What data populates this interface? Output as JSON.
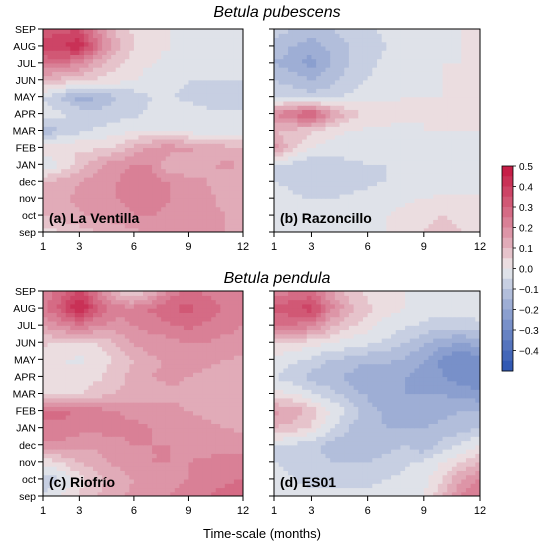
{
  "chart_data": {
    "type": "heatmap",
    "x_title": "Time-scale (months)",
    "x_ticks": [
      1,
      3,
      6,
      9,
      12
    ],
    "y_months": [
      "sep",
      "oct",
      "nov",
      "dec",
      "JAN",
      "FEB",
      "MAR",
      "APR",
      "MAY",
      "JUN",
      "JUL",
      "AUG",
      "SEP"
    ],
    "x_scales": [
      1,
      2,
      3,
      4,
      5,
      6,
      7,
      8,
      9,
      10,
      11,
      12
    ],
    "colorbar": {
      "ticks": [
        "0.5",
        "0.4",
        "0.3",
        "0.2",
        "0.1",
        "0.0",
        "−0.1",
        "−0.2",
        "−0.3",
        "−0.4"
      ],
      "levels": [
        0.5,
        0.4,
        0.3,
        0.2,
        0.1,
        0.0,
        -0.1,
        -0.2,
        -0.3,
        -0.4
      ],
      "range": [
        -0.5,
        0.5
      ],
      "positive_color": "#c41540",
      "negative_color": "#2a52b0",
      "neutral_color": "#eeeeee"
    },
    "species_titles": [
      "Betula pubescens",
      "Betula pendula"
    ],
    "panels": [
      {
        "label": "(a) La Ventilla",
        "values": [
          [
            0.02,
            0.05,
            0.08,
            0.1,
            0.12,
            0.14,
            0.15,
            0.16,
            0.17,
            0.16,
            0.15,
            0.14
          ],
          [
            0.1,
            0.12,
            0.14,
            0.16,
            0.18,
            0.2,
            0.2,
            0.19,
            0.18,
            0.16,
            0.15,
            0.14
          ],
          [
            0.12,
            0.14,
            0.16,
            0.18,
            0.2,
            0.21,
            0.21,
            0.2,
            0.18,
            0.16,
            0.14,
            0.12
          ],
          [
            0.1,
            0.12,
            0.15,
            0.18,
            0.2,
            0.22,
            0.22,
            0.2,
            0.17,
            0.15,
            0.13,
            0.12
          ],
          [
            -0.05,
            0.0,
            0.08,
            0.14,
            0.18,
            0.2,
            0.2,
            0.1,
            0.1,
            0.14,
            0.16,
            0.15
          ],
          [
            0.05,
            0.05,
            0.04,
            0.04,
            0.06,
            0.12,
            0.16,
            0.18,
            0.16,
            0.14,
            0.12,
            0.1
          ],
          [
            -0.15,
            -0.1,
            -0.06,
            -0.04,
            -0.02,
            0.0,
            0.0,
            0.0,
            -0.02,
            -0.03,
            -0.03,
            -0.02
          ],
          [
            -0.02,
            -0.04,
            -0.06,
            -0.08,
            -0.08,
            -0.06,
            -0.04,
            -0.02,
            -0.03,
            -0.04,
            -0.04,
            -0.04
          ],
          [
            -0.05,
            -0.1,
            -0.18,
            -0.15,
            -0.1,
            -0.08,
            -0.05,
            -0.05,
            -0.06,
            -0.07,
            -0.08,
            -0.08
          ],
          [
            0.1,
            0.08,
            0.06,
            0.04,
            0.02,
            0.0,
            -0.02,
            -0.04,
            -0.05,
            -0.05,
            -0.05,
            -0.05
          ],
          [
            0.25,
            0.25,
            0.2,
            0.12,
            0.06,
            0.02,
            0.0,
            -0.02,
            -0.03,
            -0.03,
            -0.03,
            -0.03
          ],
          [
            0.38,
            0.4,
            0.45,
            0.25,
            0.12,
            0.05,
            0.02,
            0.0,
            -0.01,
            -0.01,
            -0.02,
            -0.02
          ],
          [
            0.32,
            0.34,
            0.34,
            0.2,
            0.1,
            0.04,
            0.02,
            0.0,
            -0.01,
            -0.01,
            -0.02,
            -0.02
          ]
        ]
      },
      {
        "label": "(b) Razoncillo",
        "values": [
          [
            -0.05,
            -0.05,
            -0.04,
            -0.03,
            -0.02,
            -0.01,
            0.0,
            0.02,
            0.05,
            0.06,
            0.05,
            0.03
          ],
          [
            -0.05,
            -0.05,
            -0.04,
            -0.03,
            -0.02,
            -0.01,
            0.0,
            0.02,
            0.04,
            0.05,
            0.04,
            0.02
          ],
          [
            -0.03,
            -0.04,
            -0.05,
            -0.05,
            -0.04,
            -0.03,
            -0.02,
            -0.01,
            0.0,
            0.01,
            0.01,
            0.01
          ],
          [
            -0.05,
            -0.06,
            -0.1,
            -0.1,
            -0.08,
            -0.06,
            -0.05,
            -0.05,
            -0.05,
            -0.04,
            -0.03,
            -0.02
          ],
          [
            -0.05,
            -0.06,
            -0.1,
            -0.08,
            -0.06,
            -0.05,
            -0.05,
            -0.04,
            -0.03,
            -0.03,
            -0.02,
            -0.02
          ],
          [
            0.18,
            0.06,
            0.0,
            -0.02,
            -0.03,
            -0.03,
            -0.02,
            -0.02,
            -0.02,
            -0.01,
            -0.01,
            0.0
          ],
          [
            0.1,
            0.08,
            0.06,
            0.02,
            0.0,
            -0.01,
            -0.01,
            -0.01,
            0.0,
            0.0,
            0.0,
            0.0
          ],
          [
            0.2,
            0.26,
            0.32,
            0.18,
            0.08,
            0.04,
            0.02,
            0.01,
            0.0,
            0.0,
            0.0,
            0.0
          ],
          [
            -0.05,
            -0.06,
            -0.08,
            -0.06,
            -0.04,
            -0.02,
            -0.01,
            0.0,
            0.0,
            0.0,
            0.0,
            0.0
          ],
          [
            -0.1,
            -0.12,
            -0.15,
            -0.12,
            -0.08,
            -0.05,
            -0.03,
            -0.02,
            -0.01,
            0.0,
            0.0,
            0.0
          ],
          [
            -0.15,
            -0.18,
            -0.22,
            -0.15,
            -0.1,
            -0.06,
            -0.04,
            -0.02,
            -0.01,
            0.0,
            0.0,
            0.0
          ],
          [
            -0.12,
            -0.15,
            -0.18,
            -0.14,
            -0.1,
            -0.07,
            -0.05,
            -0.03,
            -0.02,
            -0.01,
            0.0,
            0.0
          ],
          [
            -0.08,
            -0.1,
            -0.12,
            -0.1,
            -0.08,
            -0.06,
            -0.04,
            -0.03,
            -0.02,
            -0.01,
            0.0,
            0.0
          ]
        ]
      },
      {
        "label": "(c) Riofrío",
        "values": [
          [
            -0.05,
            0.0,
            0.06,
            0.1,
            0.14,
            0.16,
            0.18,
            0.2,
            0.24,
            0.25,
            0.27,
            0.3
          ],
          [
            -0.1,
            -0.05,
            0.03,
            0.08,
            0.12,
            0.15,
            0.17,
            0.18,
            0.2,
            0.22,
            0.24,
            0.25
          ],
          [
            0.02,
            0.05,
            0.1,
            0.13,
            0.16,
            0.18,
            0.2,
            0.2,
            0.2,
            0.21,
            0.22,
            0.22
          ],
          [
            0.18,
            0.18,
            0.16,
            0.16,
            0.18,
            0.2,
            0.2,
            0.2,
            0.19,
            0.18,
            0.18,
            0.18
          ],
          [
            0.24,
            0.24,
            0.22,
            0.22,
            0.22,
            0.22,
            0.2,
            0.19,
            0.17,
            0.16,
            0.15,
            0.14
          ],
          [
            0.26,
            0.26,
            0.24,
            0.22,
            0.2,
            0.18,
            0.17,
            0.16,
            0.15,
            0.14,
            0.13,
            0.12
          ],
          [
            0.02,
            0.03,
            0.05,
            0.08,
            0.1,
            0.12,
            0.13,
            0.14,
            0.14,
            0.13,
            0.12,
            0.1
          ],
          [
            0.02,
            0.02,
            0.02,
            0.04,
            0.08,
            0.12,
            0.15,
            0.16,
            0.15,
            0.14,
            0.12,
            0.1
          ],
          [
            0.0,
            0.0,
            -0.01,
            0.02,
            0.06,
            0.1,
            0.14,
            0.16,
            0.17,
            0.16,
            0.15,
            0.14
          ],
          [
            0.06,
            0.05,
            0.04,
            0.05,
            0.1,
            0.16,
            0.18,
            0.18,
            0.2,
            0.2,
            0.18,
            0.18
          ],
          [
            0.15,
            0.2,
            0.24,
            0.2,
            0.18,
            0.2,
            0.22,
            0.24,
            0.26,
            0.24,
            0.22,
            0.2
          ],
          [
            0.24,
            0.32,
            0.48,
            0.3,
            0.22,
            0.22,
            0.26,
            0.3,
            0.32,
            0.28,
            0.24,
            0.22
          ],
          [
            0.2,
            0.28,
            0.36,
            0.24,
            0.1,
            0.02,
            0.12,
            0.22,
            0.26,
            0.24,
            0.22,
            0.2
          ]
        ]
      },
      {
        "label": "(d) ES01",
        "values": [
          [
            -0.02,
            -0.03,
            -0.04,
            -0.04,
            -0.04,
            -0.04,
            -0.03,
            -0.02,
            0.0,
            0.1,
            0.2,
            0.25
          ],
          [
            -0.04,
            -0.05,
            -0.06,
            -0.06,
            -0.06,
            -0.06,
            -0.05,
            -0.04,
            -0.02,
            0.05,
            0.15,
            0.2
          ],
          [
            -0.05,
            -0.06,
            -0.08,
            -0.1,
            -0.1,
            -0.1,
            -0.08,
            -0.06,
            -0.04,
            0.0,
            0.05,
            0.1
          ],
          [
            -0.05,
            -0.06,
            -0.08,
            -0.12,
            -0.14,
            -0.14,
            -0.12,
            -0.1,
            -0.14,
            -0.08,
            -0.04,
            0.0
          ],
          [
            0.1,
            0.08,
            0.04,
            -0.04,
            -0.1,
            -0.14,
            -0.15,
            -0.15,
            -0.15,
            -0.14,
            -0.12,
            -0.1
          ],
          [
            0.16,
            0.14,
            0.08,
            0.0,
            -0.06,
            -0.12,
            -0.16,
            -0.18,
            -0.18,
            -0.16,
            -0.15,
            -0.14
          ],
          [
            0.02,
            0.0,
            -0.04,
            -0.08,
            -0.12,
            -0.16,
            -0.2,
            -0.2,
            -0.2,
            -0.2,
            -0.22,
            -0.24
          ],
          [
            -0.05,
            -0.08,
            -0.12,
            -0.14,
            -0.16,
            -0.2,
            -0.2,
            -0.2,
            -0.22,
            -0.25,
            -0.28,
            -0.3
          ],
          [
            -0.02,
            -0.04,
            -0.06,
            -0.1,
            -0.12,
            -0.14,
            -0.14,
            -0.16,
            -0.2,
            -0.26,
            -0.3,
            -0.28
          ],
          [
            0.05,
            0.04,
            0.02,
            0.0,
            -0.02,
            -0.04,
            -0.06,
            -0.1,
            -0.14,
            -0.18,
            -0.2,
            -0.18
          ],
          [
            0.25,
            0.24,
            0.22,
            0.12,
            0.06,
            0.02,
            -0.02,
            -0.04,
            -0.06,
            -0.08,
            -0.08,
            -0.06
          ],
          [
            0.32,
            0.34,
            0.38,
            0.22,
            0.12,
            0.06,
            0.02,
            0.0,
            -0.02,
            -0.03,
            -0.03,
            -0.02
          ],
          [
            0.22,
            0.24,
            0.26,
            0.16,
            0.08,
            0.04,
            0.02,
            0.0,
            -0.01,
            -0.01,
            -0.01,
            -0.01
          ]
        ]
      }
    ]
  }
}
